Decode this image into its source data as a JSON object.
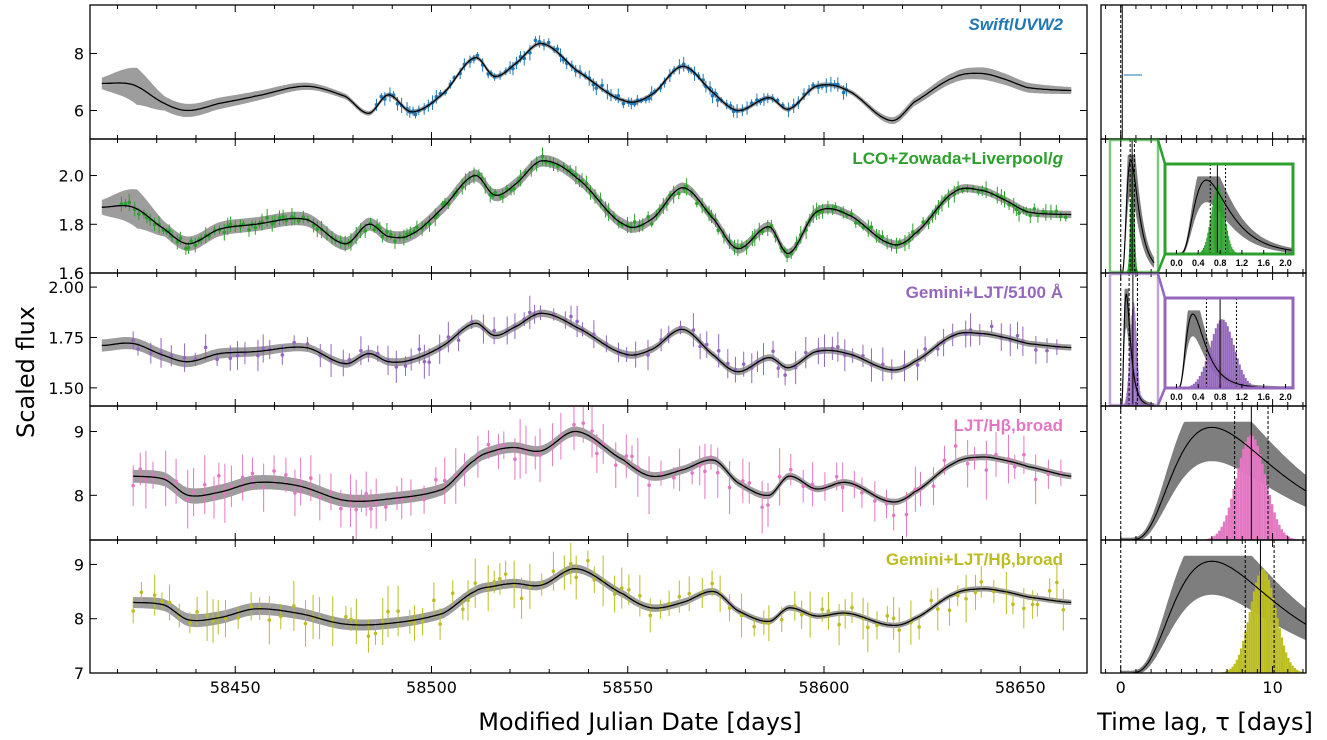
{
  "figure": {
    "x_axis_label": "Modified Julian Date [days]",
    "y_axis_label": "Scaled flux",
    "lag_axis_label": "Time lag, τ [days]"
  },
  "chart_data": {
    "type": "scatter",
    "x": {
      "lim": [
        58413,
        58667
      ],
      "ticks": [
        58450,
        58500,
        58550,
        58600,
        58650
      ],
      "tick_labels": [
        "58450",
        "58500",
        "58550",
        "58600",
        "58650"
      ]
    },
    "lag": {
      "lim": [
        -1.3,
        12.2
      ],
      "ticks": [
        0,
        10
      ],
      "tick_labels": [
        "0",
        "10"
      ]
    },
    "panels": [
      {
        "id": "uvw2",
        "label_parts": [
          {
            "t": "Swift",
            "italic": true
          },
          {
            "t": "/",
            "italic": false
          },
          {
            "t": "UVW2",
            "italic": true
          }
        ],
        "color": "#1f77b4",
        "ylim": [
          5.0,
          9.7
        ],
        "yticks": [
          6,
          8
        ],
        "ytick_labels": [
          "6",
          "8"
        ],
        "obs_range": [
          58486,
          58606
        ],
        "err": 0.16,
        "model": [
          [
            58416,
            6.95
          ],
          [
            58424,
            6.9
          ],
          [
            58432,
            6.25
          ],
          [
            58438,
            6.0
          ],
          [
            58446,
            6.25
          ],
          [
            58455,
            6.5
          ],
          [
            58468,
            6.85
          ],
          [
            58478,
            6.5
          ],
          [
            58484,
            5.9
          ],
          [
            58489,
            6.55
          ],
          [
            58495,
            5.95
          ],
          [
            58503,
            6.6
          ],
          [
            58511,
            7.85
          ],
          [
            58516,
            7.2
          ],
          [
            58521,
            7.6
          ],
          [
            58528,
            8.35
          ],
          [
            58537,
            7.4
          ],
          [
            58549,
            6.35
          ],
          [
            58556,
            6.55
          ],
          [
            58564,
            7.55
          ],
          [
            58572,
            6.6
          ],
          [
            58578,
            6.0
          ],
          [
            58586,
            6.45
          ],
          [
            58591,
            6.05
          ],
          [
            58598,
            6.85
          ],
          [
            58606,
            6.7
          ],
          [
            58617,
            5.65
          ],
          [
            58623,
            6.3
          ],
          [
            58633,
            7.15
          ],
          [
            58640,
            7.3
          ],
          [
            58646,
            7.1
          ],
          [
            58652,
            6.8
          ],
          [
            58663,
            6.7
          ]
        ],
        "band": [
          [
            58416,
            0.2
          ],
          [
            58425,
            0.65
          ],
          [
            58432,
            0.25
          ],
          [
            58470,
            0.12
          ],
          [
            58484,
            0.08
          ],
          [
            58606,
            0.08
          ],
          [
            58625,
            0.15
          ],
          [
            58642,
            0.22
          ],
          [
            58663,
            0.12
          ]
        ],
        "lag_kind": "spike",
        "lag_spike": 0.1
      },
      {
        "id": "g",
        "label_parts": [
          {
            "t": "LCO+Zowada+Liverpool/",
            "italic": false
          },
          {
            "t": "g",
            "italic": true
          }
        ],
        "color": "#2ca02c",
        "ylim": [
          1.6,
          2.15
        ],
        "yticks": [
          1.6,
          1.8,
          2.0
        ],
        "ytick_labels": [
          "1.6",
          "1.8",
          "2.0"
        ],
        "obs_range": [
          58421,
          58662
        ],
        "err": 0.022,
        "model": [
          [
            58416,
            1.87
          ],
          [
            58424,
            1.87
          ],
          [
            58432,
            1.78
          ],
          [
            58438,
            1.72
          ],
          [
            58446,
            1.78
          ],
          [
            58455,
            1.8
          ],
          [
            58468,
            1.82
          ],
          [
            58478,
            1.72
          ],
          [
            58484,
            1.8
          ],
          [
            58489,
            1.75
          ],
          [
            58495,
            1.76
          ],
          [
            58503,
            1.87
          ],
          [
            58511,
            2.0
          ],
          [
            58516,
            1.92
          ],
          [
            58521,
            1.96
          ],
          [
            58528,
            2.06
          ],
          [
            58537,
            1.99
          ],
          [
            58549,
            1.8
          ],
          [
            58556,
            1.82
          ],
          [
            58564,
            1.95
          ],
          [
            58572,
            1.82
          ],
          [
            58578,
            1.7
          ],
          [
            58586,
            1.79
          ],
          [
            58591,
            1.68
          ],
          [
            58598,
            1.85
          ],
          [
            58606,
            1.84
          ],
          [
            58617,
            1.72
          ],
          [
            58623,
            1.76
          ],
          [
            58633,
            1.93
          ],
          [
            58640,
            1.94
          ],
          [
            58646,
            1.9
          ],
          [
            58652,
            1.85
          ],
          [
            58663,
            1.84
          ]
        ],
        "band": [
          [
            58416,
            0.03
          ],
          [
            58425,
            0.08
          ],
          [
            58432,
            0.03
          ],
          [
            58663,
            0.015
          ]
        ],
        "lag_kind": "inset",
        "lag_shape": [
          0.55,
          1.2
        ],
        "lag_hist": [
          0.75,
          0.12
        ],
        "lag_lines": [
          0.62,
          0.75,
          0.9
        ],
        "inset_ticks": [
          0.0,
          0.4,
          0.8,
          1.2,
          1.6,
          2.0
        ],
        "inset_tick_labels": [
          "0.0",
          "0.4",
          "0.8",
          "1.2",
          "1.6",
          "2.0"
        ]
      },
      {
        "id": "5100",
        "label_parts": [
          {
            "t": "Gemini+LJT/5100 Å",
            "italic": false
          }
        ],
        "color": "#9467bd",
        "ylim": [
          1.41,
          2.07
        ],
        "yticks": [
          1.5,
          1.75,
          2.0
        ],
        "ytick_labels": [
          "1.50",
          "1.75",
          "2.00"
        ],
        "obs_range": [
          58424,
          58662
        ],
        "err": 0.05,
        "model": [
          [
            58416,
            1.71
          ],
          [
            58424,
            1.72
          ],
          [
            58432,
            1.66
          ],
          [
            58438,
            1.63
          ],
          [
            58446,
            1.67
          ],
          [
            58455,
            1.68
          ],
          [
            58468,
            1.7
          ],
          [
            58478,
            1.62
          ],
          [
            58484,
            1.67
          ],
          [
            58489,
            1.63
          ],
          [
            58495,
            1.64
          ],
          [
            58503,
            1.71
          ],
          [
            58511,
            1.82
          ],
          [
            58516,
            1.76
          ],
          [
            58521,
            1.8
          ],
          [
            58528,
            1.87
          ],
          [
            58537,
            1.8
          ],
          [
            58549,
            1.67
          ],
          [
            58556,
            1.69
          ],
          [
            58564,
            1.79
          ],
          [
            58572,
            1.66
          ],
          [
            58578,
            1.58
          ],
          [
            58586,
            1.65
          ],
          [
            58591,
            1.6
          ],
          [
            58598,
            1.68
          ],
          [
            58606,
            1.67
          ],
          [
            58617,
            1.59
          ],
          [
            58623,
            1.63
          ],
          [
            58633,
            1.76
          ],
          [
            58640,
            1.77
          ],
          [
            58646,
            1.75
          ],
          [
            58652,
            1.72
          ],
          [
            58663,
            1.7
          ]
        ],
        "band": [
          [
            58416,
            0.03
          ],
          [
            58425,
            0.03
          ],
          [
            58470,
            0.02
          ],
          [
            58663,
            0.015
          ]
        ],
        "lag_kind": "inset",
        "lag_shape": [
          0.3,
          1.8
        ],
        "lag_hist": [
          0.82,
          0.22
        ],
        "lag_lines": [
          0.55,
          0.8,
          1.1
        ],
        "inset_ticks": [
          0.0,
          0.4,
          0.8,
          1.2,
          1.6,
          2.0
        ],
        "inset_tick_labels": [
          "0.0",
          "0.4",
          "0.8",
          "1.2",
          "1.6",
          "2.0"
        ]
      },
      {
        "id": "hb1",
        "label_parts": [
          {
            "t": "LJT/Hβ,broad",
            "italic": false
          }
        ],
        "color": "#e377c2",
        "ylim": [
          7.3,
          9.4
        ],
        "yticks": [
          8,
          9
        ],
        "ytick_labels": [
          "8",
          "9"
        ],
        "obs_range": [
          58424,
          58662
        ],
        "err": 0.28,
        "model": [
          [
            58424,
            8.3
          ],
          [
            58432,
            8.25
          ],
          [
            58438,
            8.0
          ],
          [
            58446,
            8.05
          ],
          [
            58455,
            8.2
          ],
          [
            58466,
            8.15
          ],
          [
            58478,
            7.92
          ],
          [
            58490,
            7.95
          ],
          [
            58503,
            8.1
          ],
          [
            58511,
            8.55
          ],
          [
            58516,
            8.7
          ],
          [
            58521,
            8.75
          ],
          [
            58528,
            8.7
          ],
          [
            58537,
            9.0
          ],
          [
            58549,
            8.55
          ],
          [
            58556,
            8.3
          ],
          [
            58564,
            8.4
          ],
          [
            58572,
            8.55
          ],
          [
            58578,
            8.2
          ],
          [
            58586,
            8.0
          ],
          [
            58591,
            8.3
          ],
          [
            58598,
            8.1
          ],
          [
            58606,
            8.2
          ],
          [
            58617,
            7.9
          ],
          [
            58623,
            8.05
          ],
          [
            58633,
            8.5
          ],
          [
            58640,
            8.6
          ],
          [
            58646,
            8.55
          ],
          [
            58652,
            8.45
          ],
          [
            58663,
            8.3
          ]
        ],
        "band": [
          [
            58424,
            0.1
          ],
          [
            58440,
            0.12
          ],
          [
            58600,
            0.05
          ],
          [
            58663,
            0.05
          ]
        ],
        "lag_kind": "full",
        "lag_shape": [
          6.0,
          7.0
        ],
        "lag_hist": [
          8.5,
          0.95
        ],
        "lag_lines": [
          0,
          7.5,
          8.6,
          9.7
        ]
      },
      {
        "id": "hb2",
        "label_parts": [
          {
            "t": "Gemini+LJT/Hβ,broad",
            "italic": false
          }
        ],
        "color": "#bcbd22",
        "ylim": [
          7.0,
          9.45
        ],
        "yticks": [
          7,
          8,
          9
        ],
        "ytick_labels": [
          "7",
          "8",
          "9"
        ],
        "obs_range": [
          58424,
          58662
        ],
        "err": 0.28,
        "model": [
          [
            58424,
            8.3
          ],
          [
            58432,
            8.25
          ],
          [
            58438,
            7.98
          ],
          [
            58446,
            8.02
          ],
          [
            58455,
            8.18
          ],
          [
            58466,
            8.1
          ],
          [
            58478,
            7.9
          ],
          [
            58490,
            7.92
          ],
          [
            58503,
            8.1
          ],
          [
            58511,
            8.5
          ],
          [
            58516,
            8.6
          ],
          [
            58521,
            8.65
          ],
          [
            58528,
            8.62
          ],
          [
            58537,
            8.92
          ],
          [
            58549,
            8.45
          ],
          [
            58556,
            8.2
          ],
          [
            58564,
            8.3
          ],
          [
            58572,
            8.5
          ],
          [
            58578,
            8.15
          ],
          [
            58586,
            7.95
          ],
          [
            58591,
            8.2
          ],
          [
            58598,
            8.05
          ],
          [
            58606,
            8.1
          ],
          [
            58617,
            7.88
          ],
          [
            58623,
            8.0
          ],
          [
            58633,
            8.45
          ],
          [
            58640,
            8.55
          ],
          [
            58646,
            8.5
          ],
          [
            58652,
            8.4
          ],
          [
            58663,
            8.3
          ]
        ],
        "band": [
          [
            58424,
            0.1
          ],
          [
            58440,
            0.12
          ],
          [
            58600,
            0.05
          ],
          [
            58663,
            0.05
          ]
        ],
        "lag_kind": "full",
        "lag_shape": [
          6.0,
          7.0
        ],
        "lag_hist": [
          9.3,
          0.85
        ],
        "lag_lines": [
          0,
          8.2,
          9.2,
          10.1
        ]
      }
    ]
  }
}
